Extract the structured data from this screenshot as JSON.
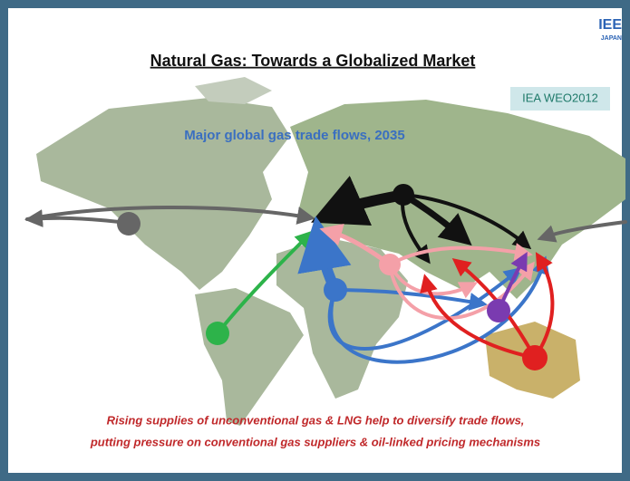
{
  "header": {
    "title": "Natural Gas: Towards a Globalized Market",
    "logo": "IEE",
    "logo_sub": "JAPAN",
    "source": "IEA WEO2012"
  },
  "map": {
    "title": "Major global gas trade flows, 2035"
  },
  "caption": {
    "lines": [
      "Rising supplies of unconventional gas & LNG help to diversify trade flows,",
      "putting pressure on conventional gas suppliers & oil-linked pricing mechanisms"
    ]
  }
}
